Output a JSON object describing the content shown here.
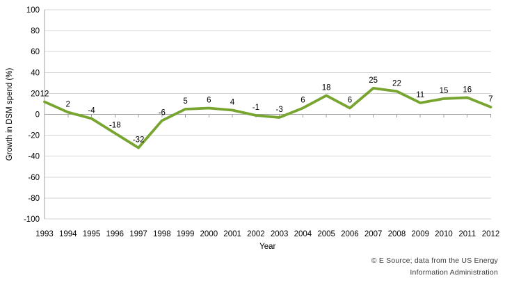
{
  "chart_data": {
    "type": "line",
    "title": "",
    "xlabel": "Year",
    "ylabel": "Growth in DSM spend (%)",
    "categories": [
      "1993",
      "1994",
      "1995",
      "1996",
      "1997",
      "1998",
      "1999",
      "2000",
      "2001",
      "2002",
      "2003",
      "2004",
      "2005",
      "2006",
      "2007",
      "2008",
      "2009",
      "2010",
      "2011",
      "2012"
    ],
    "values": [
      12,
      2,
      -4,
      -18,
      -32,
      -6,
      5,
      6,
      4,
      -1,
      -3,
      6,
      18,
      6,
      25,
      22,
      11,
      15,
      16,
      7
    ],
    "ylim": [
      -100,
      100
    ],
    "ytick_step": 20,
    "grid": true,
    "legend_position": "none",
    "data_labels": true,
    "line_color": "#77A52F",
    "grid_color": "#D4D4D4",
    "axis_color": "#A0A0A0"
  },
  "footer": {
    "credit_line1": "© E Source; data from the US Energy",
    "credit_line2": "Information Administration"
  }
}
